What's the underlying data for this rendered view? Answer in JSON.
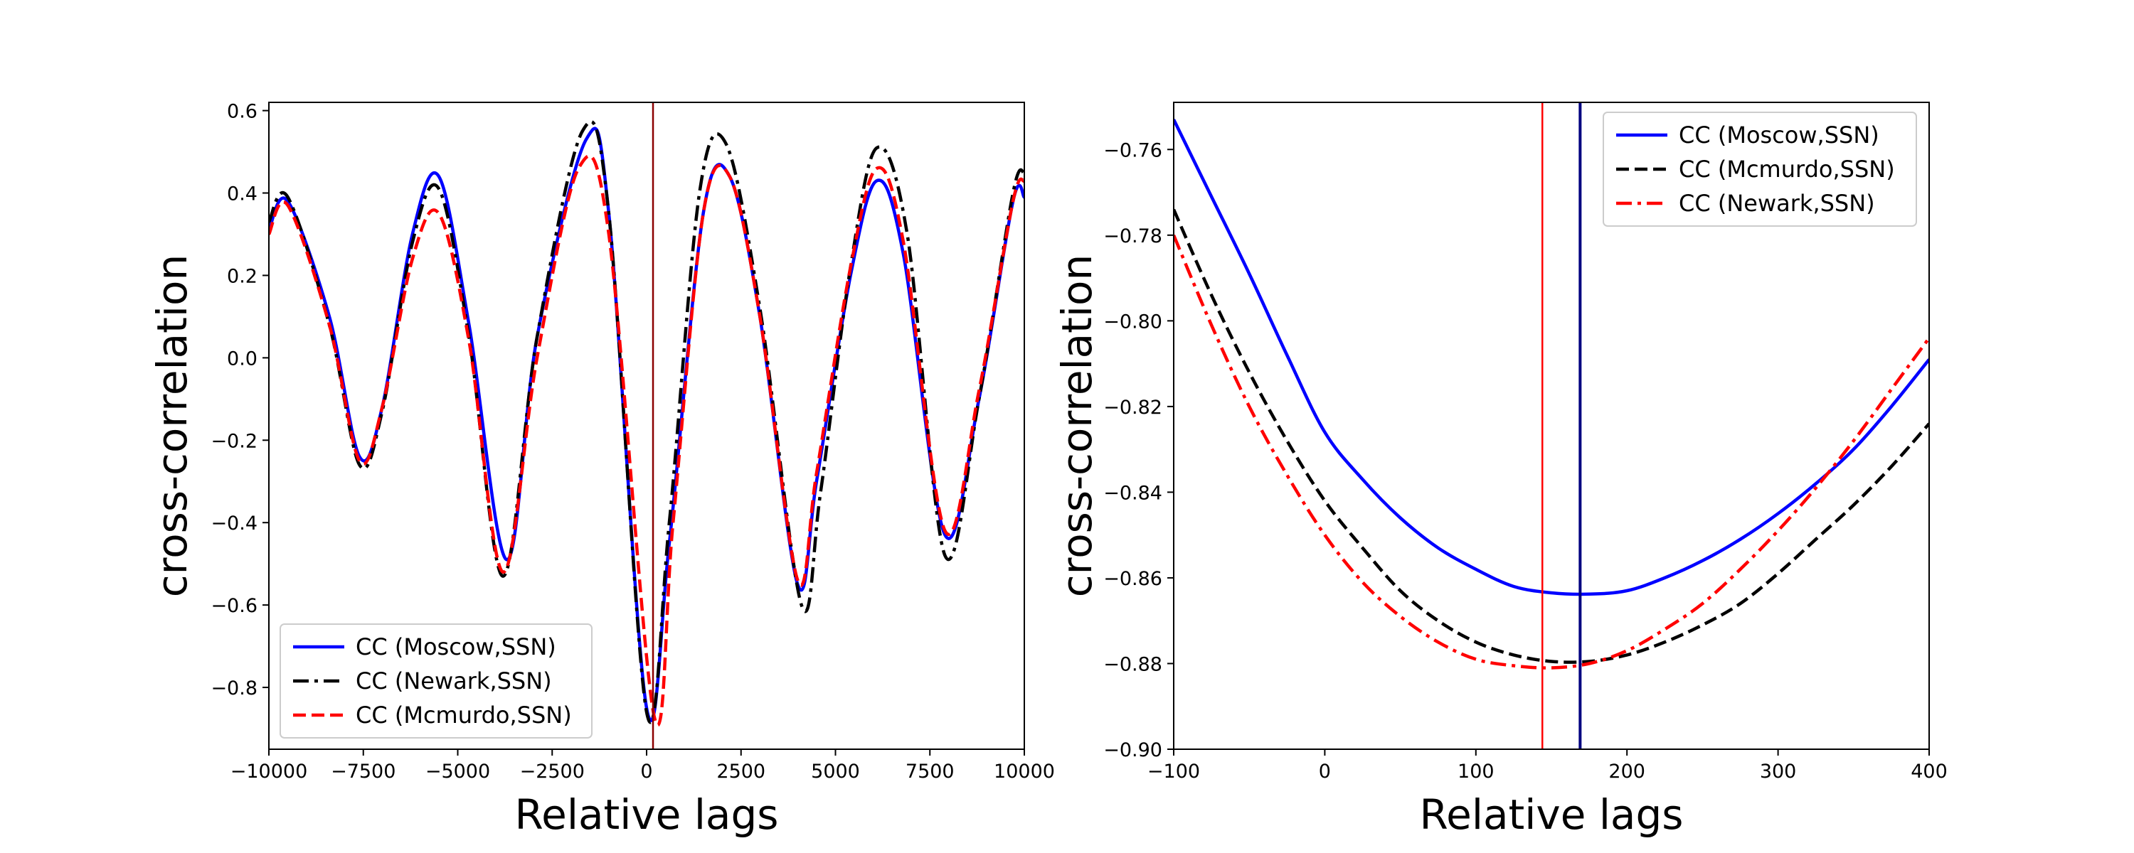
{
  "chart_data": [
    {
      "type": "line",
      "title": "",
      "xlabel": "Relative lags",
      "ylabel": "cross-correlation",
      "xlim": [
        -10000,
        10000
      ],
      "ylim": [
        -0.95,
        0.62
      ],
      "xticks": [
        -10000,
        -7500,
        -5000,
        -2500,
        0,
        2500,
        5000,
        7500,
        10000
      ],
      "xtick_labels": [
        "−10000",
        "−7500",
        "−5000",
        "−2500",
        "0",
        "2500",
        "5000",
        "7500",
        "10000"
      ],
      "yticks": [
        -0.8,
        -0.6,
        -0.4,
        -0.2,
        0.0,
        0.2,
        0.4,
        0.6
      ],
      "ytick_labels": [
        "−0.8",
        "−0.6",
        "−0.4",
        "−0.2",
        "0.0",
        "0.2",
        "0.4",
        "0.6"
      ],
      "grid": false,
      "legend_position": "lower-left",
      "vlines": [
        {
          "x": 170,
          "color": "#8b0000"
        }
      ],
      "series": [
        {
          "name": "CC (Moscow,SSN)",
          "color": "#0000ff",
          "style": "solid",
          "x": [
            -10000,
            -9500,
            -8400,
            -7600,
            -7000,
            -6200,
            -5500,
            -4700,
            -3700,
            -2900,
            -1600,
            -1000,
            0,
            600,
            1500,
            2200,
            3000,
            4000,
            4500,
            5400,
            6100,
            6800,
            7900,
            8800,
            9700,
            10000
          ],
          "y": [
            0.31,
            0.38,
            0.1,
            -0.24,
            -0.12,
            0.3,
            0.44,
            0.08,
            -0.49,
            0.05,
            0.53,
            0.35,
            -0.85,
            -0.45,
            0.35,
            0.44,
            0.1,
            -0.55,
            -0.3,
            0.2,
            0.43,
            0.25,
            -0.43,
            -0.1,
            0.38,
            0.39
          ]
        },
        {
          "name": "CC (Newark,SSN)",
          "color": "#000000",
          "style": "dashdot",
          "x": [
            -10000,
            -9500,
            -8400,
            -7600,
            -7000,
            -6200,
            -5500,
            -4700,
            -3800,
            -2900,
            -1700,
            -1000,
            0,
            600,
            1400,
            2100,
            3000,
            4100,
            4600,
            5400,
            6100,
            6900,
            7900,
            8800,
            9700,
            10000
          ],
          "y": [
            0.33,
            0.39,
            0.08,
            -0.26,
            -0.13,
            0.28,
            0.41,
            0.05,
            -0.53,
            0.05,
            0.55,
            0.35,
            -0.86,
            -0.4,
            0.4,
            0.52,
            0.12,
            -0.6,
            -0.33,
            0.22,
            0.51,
            0.3,
            -0.48,
            -0.1,
            0.4,
            0.45
          ]
        },
        {
          "name": "CC (Mcmurdo,SSN)",
          "color": "#ff0000",
          "style": "dashed",
          "x": [
            -10000,
            -9500,
            -8400,
            -7600,
            -7000,
            -6200,
            -5500,
            -4700,
            -3800,
            -2900,
            -1800,
            -1000,
            200,
            700,
            1500,
            2200,
            3000,
            4000,
            4500,
            5400,
            6100,
            6800,
            7900,
            8800,
            9700,
            10000
          ],
          "y": [
            0.3,
            0.37,
            0.08,
            -0.25,
            -0.12,
            0.24,
            0.35,
            0.04,
            -0.52,
            0.0,
            0.46,
            0.3,
            -0.87,
            -0.4,
            0.35,
            0.44,
            0.1,
            -0.54,
            -0.28,
            0.22,
            0.46,
            0.28,
            -0.42,
            -0.08,
            0.38,
            0.43
          ]
        }
      ]
    },
    {
      "type": "line",
      "title": "",
      "xlabel": "Relative lags",
      "ylabel": "cross-correlation",
      "xlim": [
        -100,
        400
      ],
      "ylim": [
        -0.9,
        -0.749
      ],
      "xticks": [
        -100,
        0,
        100,
        200,
        300,
        400
      ],
      "xtick_labels": [
        "−100",
        "0",
        "100",
        "200",
        "300",
        "400"
      ],
      "yticks": [
        -0.9,
        -0.88,
        -0.86,
        -0.84,
        -0.82,
        -0.8,
        -0.78,
        -0.76
      ],
      "ytick_labels": [
        "−0.90",
        "−0.88",
        "−0.86",
        "−0.84",
        "−0.82",
        "−0.80",
        "−0.78",
        "−0.76"
      ],
      "grid": false,
      "legend_position": "top-right",
      "vlines": [
        {
          "x": 144,
          "color": "#ff0000"
        },
        {
          "x": 169,
          "color": "#000080"
        }
      ],
      "series": [
        {
          "name": "CC (Moscow,SSN)",
          "color": "#0000ff",
          "style": "solid",
          "x": [
            -100,
            -75,
            -50,
            -25,
            0,
            25,
            50,
            75,
            100,
            125,
            150,
            175,
            200,
            225,
            250,
            275,
            300,
            325,
            350,
            375,
            400
          ],
          "y": [
            -0.753,
            -0.771,
            -0.789,
            -0.808,
            -0.826,
            -0.837,
            -0.846,
            -0.853,
            -0.858,
            -0.862,
            -0.8635,
            -0.8638,
            -0.863,
            -0.86,
            -0.856,
            -0.851,
            -0.845,
            -0.838,
            -0.83,
            -0.82,
            -0.809
          ]
        },
        {
          "name": "CC (Mcmurdo,SSN)",
          "color": "#000000",
          "style": "dashed",
          "x": [
            -100,
            -75,
            -50,
            -25,
            0,
            25,
            50,
            75,
            100,
            125,
            150,
            175,
            200,
            225,
            250,
            275,
            300,
            325,
            350,
            375,
            400
          ],
          "y": [
            -0.774,
            -0.794,
            -0.812,
            -0.828,
            -0.842,
            -0.853,
            -0.863,
            -0.87,
            -0.875,
            -0.878,
            -0.8795,
            -0.8795,
            -0.878,
            -0.875,
            -0.871,
            -0.866,
            -0.859,
            -0.851,
            -0.843,
            -0.834,
            -0.824
          ]
        },
        {
          "name": "CC (Newark,SSN)",
          "color": "#ff0000",
          "style": "dashdot",
          "x": [
            -100,
            -75,
            -50,
            -25,
            0,
            25,
            50,
            75,
            100,
            125,
            150,
            175,
            200,
            225,
            250,
            275,
            300,
            325,
            350,
            375,
            400
          ],
          "y": [
            -0.78,
            -0.801,
            -0.82,
            -0.836,
            -0.85,
            -0.861,
            -0.869,
            -0.875,
            -0.879,
            -0.8805,
            -0.881,
            -0.88,
            -0.877,
            -0.872,
            -0.866,
            -0.858,
            -0.849,
            -0.839,
            -0.828,
            -0.816,
            -0.804
          ]
        }
      ]
    }
  ]
}
